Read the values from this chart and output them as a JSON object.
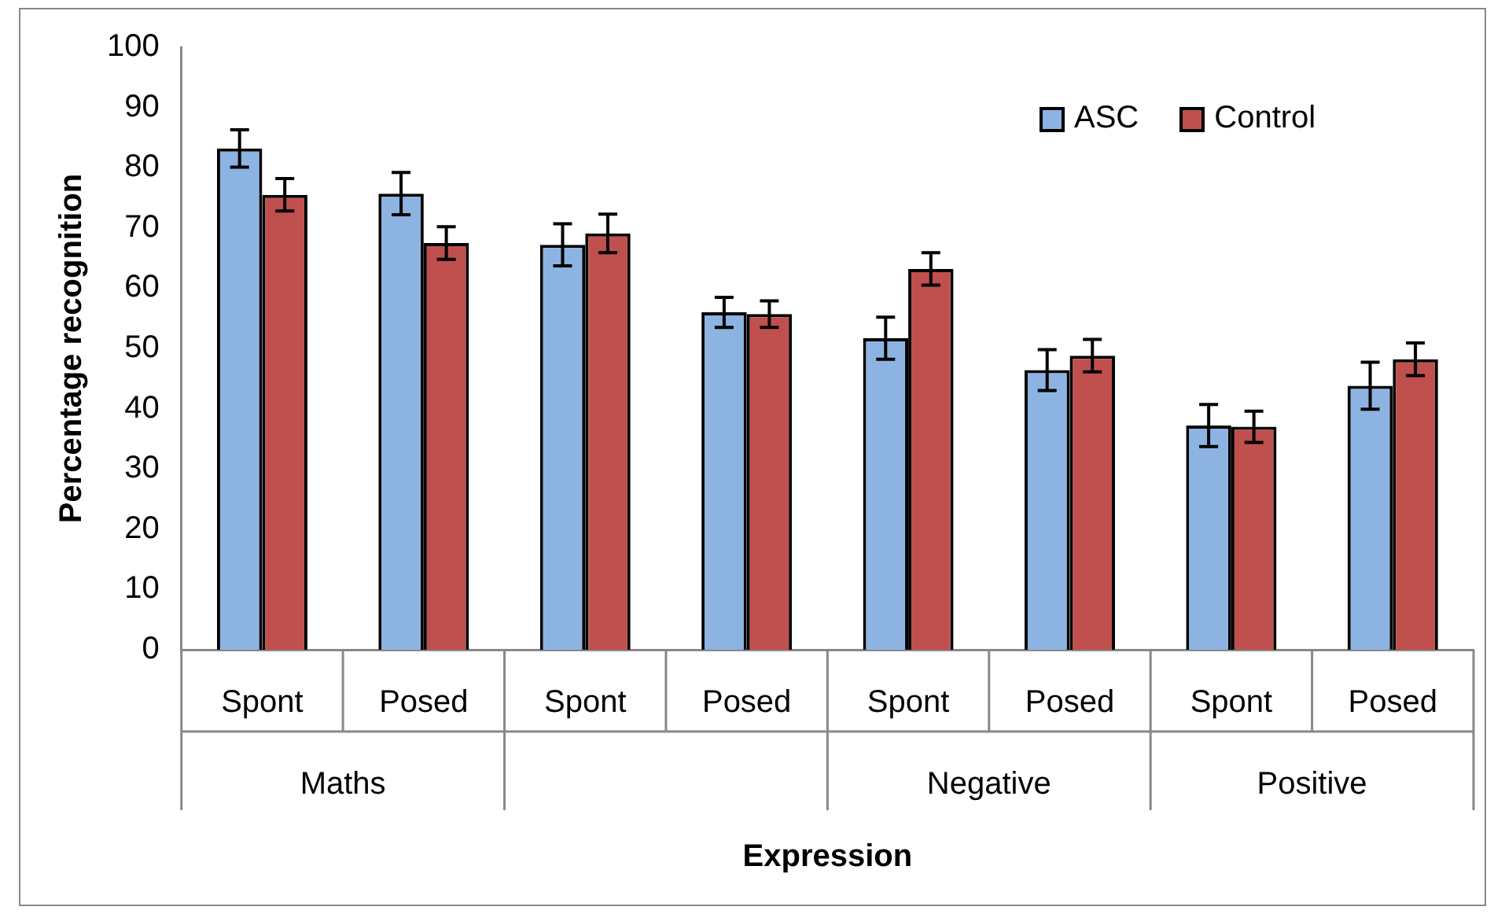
{
  "chart_data": {
    "type": "bar",
    "xlabel": "Expression",
    "ylabel": "Percentage recognition",
    "categories": [
      "Spont",
      "Posed",
      "Spont",
      "Posed",
      "Spont",
      "Posed",
      "Spont",
      "Posed"
    ],
    "annotations": [
      "Maths",
      null,
      "Negative",
      "Positive"
    ],
    "series": [
      {
        "name": "ASC",
        "color": "#8db3e2",
        "values": [
          83.2,
          75.7,
          67.2,
          56.0,
          51.7,
          46.4,
          37.2,
          43.8
        ],
        "errors": [
          3.1,
          3.5,
          3.5,
          2.5,
          3.5,
          3.4,
          3.5,
          3.9
        ]
      },
      {
        "name": "Control",
        "color": "#c0504d",
        "values": [
          75.5,
          67.5,
          69.1,
          55.7,
          63.2,
          48.8,
          37.0,
          48.2
        ],
        "errors": [
          2.7,
          2.7,
          3.2,
          2.2,
          2.7,
          2.7,
          2.6,
          2.7
        ]
      }
    ],
    "ylim": [
      0,
      100
    ],
    "yticks": [
      0,
      10,
      20,
      30,
      40,
      50,
      60,
      70,
      80,
      90,
      100
    ],
    "grid": false,
    "legend": "top right"
  }
}
